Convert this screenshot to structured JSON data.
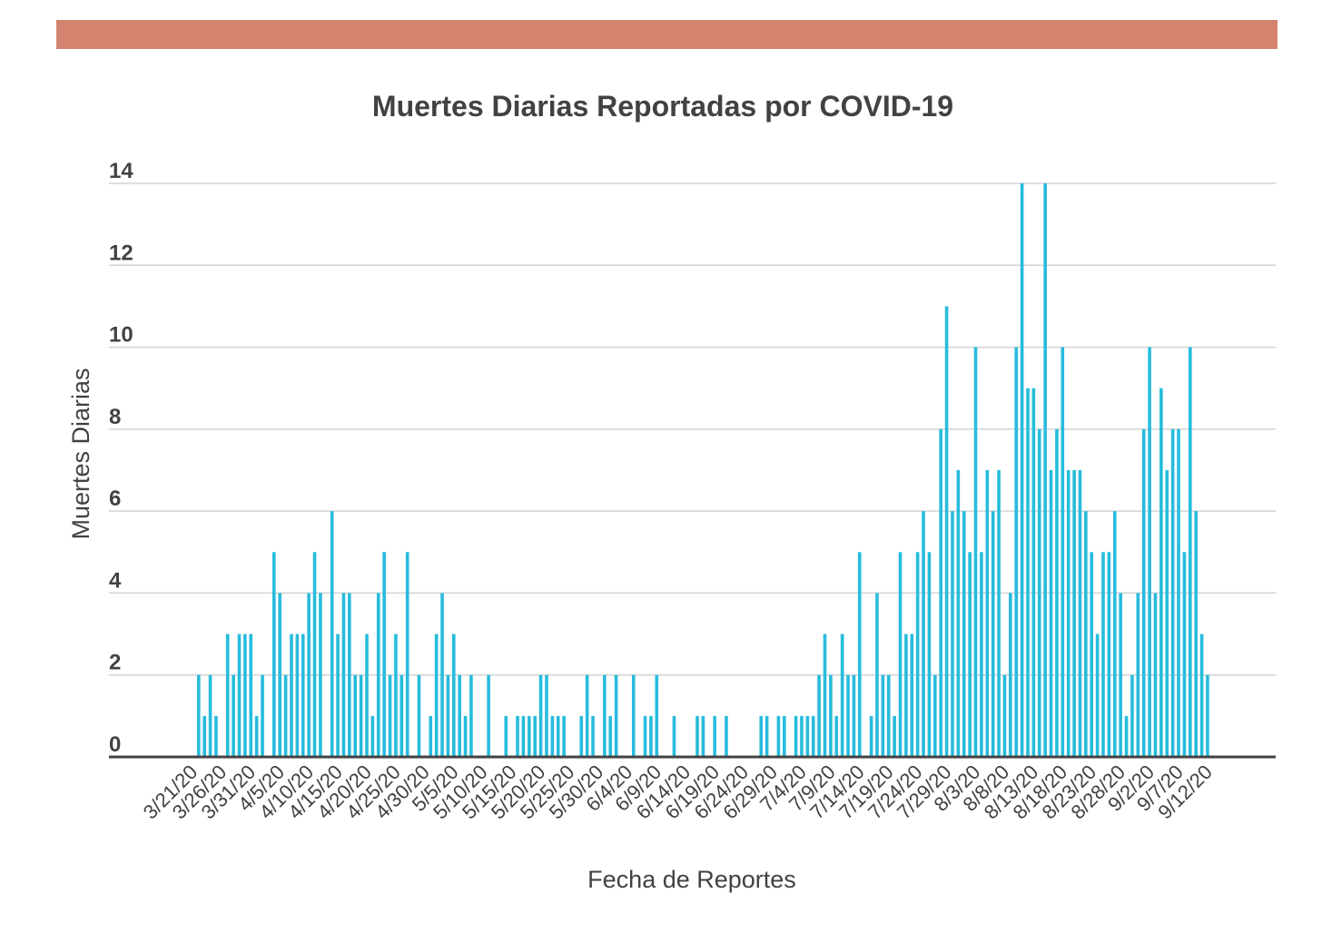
{
  "header_bar": {
    "color": "#D4836F"
  },
  "chart_data": {
    "type": "bar",
    "title": "Muertes Diarias Reportadas por COVID-19",
    "xlabel": "Fecha de Reportes",
    "ylabel": "Muertes Diarias",
    "ylim": [
      0,
      14
    ],
    "yticks": [
      0,
      2,
      4,
      6,
      8,
      10,
      12,
      14
    ],
    "grid": true,
    "bar_color": "#27BCDD",
    "x_start": "3/21/20",
    "x_end": "9/13/20",
    "xtick_labels": [
      "3/21/20",
      "3/26/20",
      "3/31/20",
      "4/5/20",
      "4/10/20",
      "4/15/20",
      "4/20/20",
      "4/25/20",
      "4/30/20",
      "5/5/20",
      "5/10/20",
      "5/15/20",
      "5/20/20",
      "5/25/20",
      "5/30/20",
      "6/4/20",
      "6/9/20",
      "6/14/20",
      "6/19/20",
      "6/24/20",
      "6/29/20",
      "7/4/20",
      "7/9/20",
      "7/14/20",
      "7/19/20",
      "7/24/20",
      "7/29/20",
      "8/3/20",
      "8/8/20",
      "8/13/20",
      "8/18/20",
      "8/23/20",
      "8/28/20",
      "9/2/20",
      "9/7/20",
      "9/12/20"
    ],
    "values": [
      2,
      1,
      2,
      1,
      0,
      3,
      2,
      3,
      3,
      3,
      1,
      2,
      0,
      5,
      4,
      2,
      3,
      3,
      3,
      4,
      5,
      4,
      0,
      6,
      3,
      4,
      4,
      2,
      2,
      3,
      1,
      4,
      5,
      2,
      3,
      2,
      5,
      0,
      2,
      0,
      1,
      3,
      4,
      2,
      3,
      2,
      1,
      2,
      0,
      0,
      2,
      0,
      0,
      1,
      0,
      1,
      1,
      1,
      1,
      2,
      2,
      1,
      1,
      1,
      0,
      0,
      1,
      2,
      1,
      0,
      2,
      1,
      2,
      0,
      0,
      2,
      0,
      1,
      1,
      2,
      0,
      0,
      1,
      0,
      0,
      0,
      1,
      1,
      0,
      1,
      0,
      1,
      0,
      0,
      0,
      0,
      0,
      1,
      1,
      0,
      1,
      1,
      0,
      1,
      1,
      1,
      1,
      2,
      3,
      2,
      1,
      3,
      2,
      2,
      5,
      0,
      1,
      4,
      2,
      2,
      1,
      5,
      3,
      3,
      5,
      6,
      5,
      2,
      8,
      11,
      6,
      7,
      6,
      5,
      10,
      5,
      7,
      6,
      7,
      2,
      4,
      10,
      14,
      9,
      9,
      8,
      14,
      7,
      8,
      10,
      7,
      7,
      7,
      6,
      5,
      3,
      5,
      5,
      6,
      4,
      1,
      2,
      4,
      8,
      10,
      4,
      9,
      7,
      8,
      8,
      5,
      10,
      6,
      3,
      2
    ]
  }
}
